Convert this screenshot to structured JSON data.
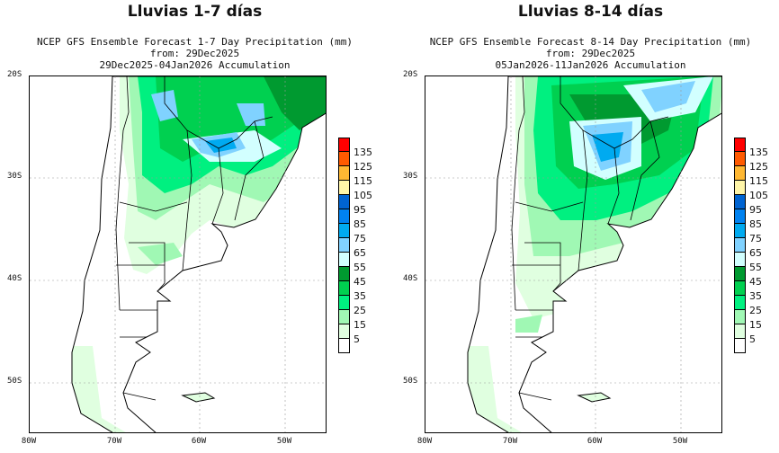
{
  "panels": [
    {
      "title": "Lluvias 1-7 días",
      "line1": "NCEP GFS Ensemble Forecast 1-7 Day Precipitation (mm)",
      "line2": "from: 29Dec2025",
      "line3": "29Dec2025-04Jan2026 Accumulation"
    },
    {
      "title": "Lluvias 8-14 días",
      "line1": "NCEP GFS Ensemble Forecast 8-14 Day Precipitation (mm)",
      "line2": "from: 29Dec2025",
      "line3": "05Jan2026-11Jan2026 Accumulation"
    }
  ],
  "lat_ticks": [
    "20S",
    "30S",
    "40S",
    "50S"
  ],
  "lon_ticks": [
    "80W",
    "70W",
    "60W",
    "50W"
  ],
  "legend": {
    "labels": [
      "135",
      "125",
      "115",
      "105",
      "95",
      "85",
      "75",
      "65",
      "55",
      "45",
      "35",
      "25",
      "15",
      "5"
    ],
    "colors": [
      "#ff0000",
      "#ff5a00",
      "#ffb833",
      "#fff5a8",
      "#0064d2",
      "#0082f0",
      "#00aaf0",
      "#80d2ff",
      "#d2ffff",
      "#009a30",
      "#00d050",
      "#00f080",
      "#a0f8b4",
      "#e0ffe0",
      "#ffffff"
    ]
  }
}
